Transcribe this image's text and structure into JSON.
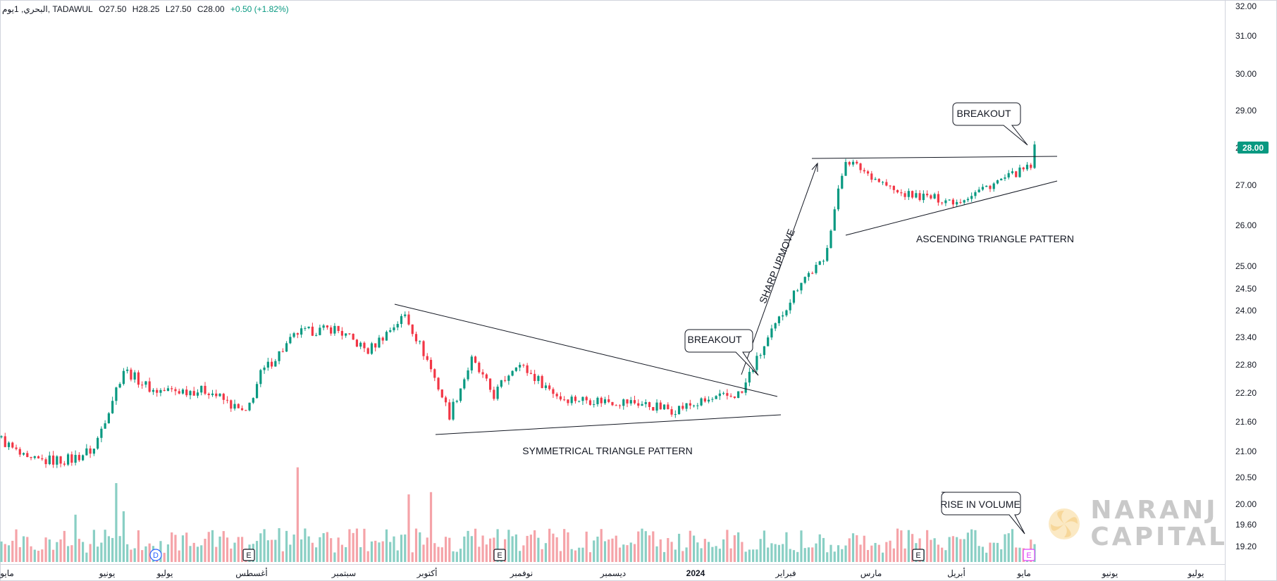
{
  "header": {
    "symbol": "البحري, 1يوم, TADAWUL",
    "open": "O27.50",
    "high": "H28.25",
    "low": "L27.50",
    "close": "C28.00",
    "change": "+0.50 (+1.82%)"
  },
  "price_label": "28.00",
  "events": [
    {
      "kind": "dividend",
      "label": "D",
      "color": "#2962ff"
    },
    {
      "kind": "earnings",
      "label": "E",
      "color": "#131722"
    },
    {
      "kind": "earnings",
      "label": "E",
      "color": "#131722"
    },
    {
      "kind": "earnings",
      "label": "E",
      "color": "#131722"
    },
    {
      "kind": "earnings",
      "label": "E",
      "color": "#e040fb"
    }
  ],
  "annotations": {
    "breakout_1": "BREAKOUT",
    "breakout_2": "BREAKOUT",
    "sharp_upmove": "SHARP UPMOVE",
    "symmetrical": "SYMMETRICAL TRIANGLE PATTERN",
    "ascending": "ASCENDING TRIANGLE PATTERN",
    "rise_volume": "RISE IN VOLUME"
  },
  "logo": {
    "line1": "NARANJ",
    "line2": "CAPITAL"
  },
  "colors": {
    "up": "#089981",
    "down": "#f23645",
    "vol_up": "#89cfc4",
    "vol_down": "#f5a3a8",
    "price_label_bg": "#089981"
  },
  "chart_data": {
    "type": "candlestick",
    "y_ticks": [
      "32.00",
      "31.00",
      "30.00",
      "29.00",
      "28.00",
      "27.00",
      "26.00",
      "25.00",
      "24.50",
      "24.00",
      "23.40",
      "22.80",
      "22.20",
      "21.60",
      "21.00",
      "20.50",
      "20.00",
      "19.60",
      "19.20"
    ],
    "x_ticks": [
      "مايو",
      "يونيو",
      "يوليو",
      "أغسطس",
      "سبتمبر",
      "أكتوبر",
      "نوفمبر",
      "ديسمبر",
      "2024",
      "فبراير",
      "مارس",
      "أبريل",
      "مايو",
      "يونيو",
      "يوليو"
    ],
    "segments": [
      {
        "n": 8,
        "from": 21.3,
        "to": 20.8
      },
      {
        "n": 12,
        "from": 20.8,
        "to": 20.85
      },
      {
        "n": 6,
        "from": 20.85,
        "to": 21.05
      },
      {
        "n": 8,
        "from": 21.05,
        "to": 22.7
      },
      {
        "n": 8,
        "from": 22.7,
        "to": 22.25
      },
      {
        "n": 15,
        "from": 22.25,
        "to": 22.25
      },
      {
        "n": 10,
        "from": 22.25,
        "to": 21.75
      },
      {
        "n": 4,
        "from": 21.75,
        "to": 22.6
      },
      {
        "n": 10,
        "from": 22.6,
        "to": 23.5
      },
      {
        "n": 10,
        "from": 23.5,
        "to": 23.6
      },
      {
        "n": 9,
        "from": 23.6,
        "to": 23.1
      },
      {
        "n": 10,
        "from": 23.1,
        "to": 23.9
      },
      {
        "n": 6,
        "from": 23.9,
        "to": 22.9
      },
      {
        "n": 6,
        "from": 22.9,
        "to": 21.75
      },
      {
        "n": 6,
        "from": 21.75,
        "to": 22.9
      },
      {
        "n": 6,
        "from": 22.9,
        "to": 22.15
      },
      {
        "n": 6,
        "from": 22.15,
        "to": 22.85
      },
      {
        "n": 12,
        "from": 22.85,
        "to": 22.1
      },
      {
        "n": 20,
        "from": 22.1,
        "to": 22.0
      },
      {
        "n": 10,
        "from": 22.0,
        "to": 21.85
      },
      {
        "n": 16,
        "from": 21.85,
        "to": 22.15
      },
      {
        "n": 3,
        "from": 22.15,
        "to": 22.2
      },
      {
        "n": 2,
        "from": 22.2,
        "to": 22.6
      },
      {
        "n": 6,
        "from": 22.6,
        "to": 23.5
      },
      {
        "n": 8,
        "from": 23.5,
        "to": 24.7
      },
      {
        "n": 6,
        "from": 24.7,
        "to": 25.1
      },
      {
        "n": 6,
        "from": 25.1,
        "to": 27.7
      },
      {
        "n": 14,
        "from": 27.7,
        "to": 26.8
      },
      {
        "n": 16,
        "from": 26.8,
        "to": 26.6
      },
      {
        "n": 20,
        "from": 26.6,
        "to": 27.5
      },
      {
        "n": 1,
        "from": 27.5,
        "to": 28.0
      }
    ],
    "volume_ylim": [
      0,
      1.0
    ],
    "volume_range": [
      0.08,
      0.3
    ],
    "volume_spikes": [
      {
        "at": 20,
        "value": 0.42
      },
      {
        "at": 31,
        "value": 0.7
      },
      {
        "at": 33,
        "value": 0.45
      },
      {
        "at": 80,
        "value": 0.84
      },
      {
        "at": 110,
        "value": 0.6
      },
      {
        "at": 116,
        "value": 0.62
      },
      {
        "at": 283,
        "value": 0.8
      },
      {
        "at": 304,
        "value": 0.76
      },
      {
        "at": 310,
        "value": 0.56
      },
      {
        "at": 391,
        "value": 0.45
      },
      {
        "at": 411,
        "value": 0.55
      }
    ]
  }
}
